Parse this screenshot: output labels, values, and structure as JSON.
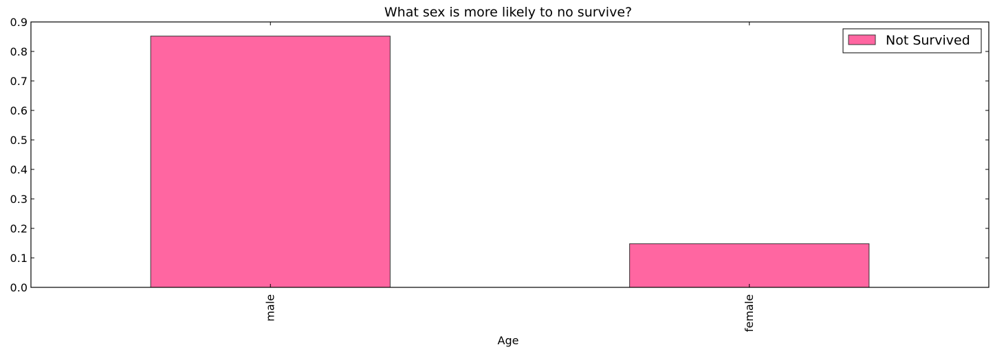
{
  "chart_data": {
    "type": "bar",
    "title": "What sex is more likely to no  survive?",
    "xlabel": "Age",
    "ylabel": "",
    "categories": [
      "male",
      "female"
    ],
    "series": [
      {
        "name": "Not Survived",
        "values": [
          0.852,
          0.148
        ],
        "color": "#ff66a1"
      }
    ],
    "ylim": [
      0,
      0.9
    ],
    "yticks": [
      "0.0",
      "0.1",
      "0.2",
      "0.3",
      "0.4",
      "0.5",
      "0.6",
      "0.7",
      "0.8",
      "0.9"
    ],
    "legend_position": "top-right",
    "grid": false
  }
}
